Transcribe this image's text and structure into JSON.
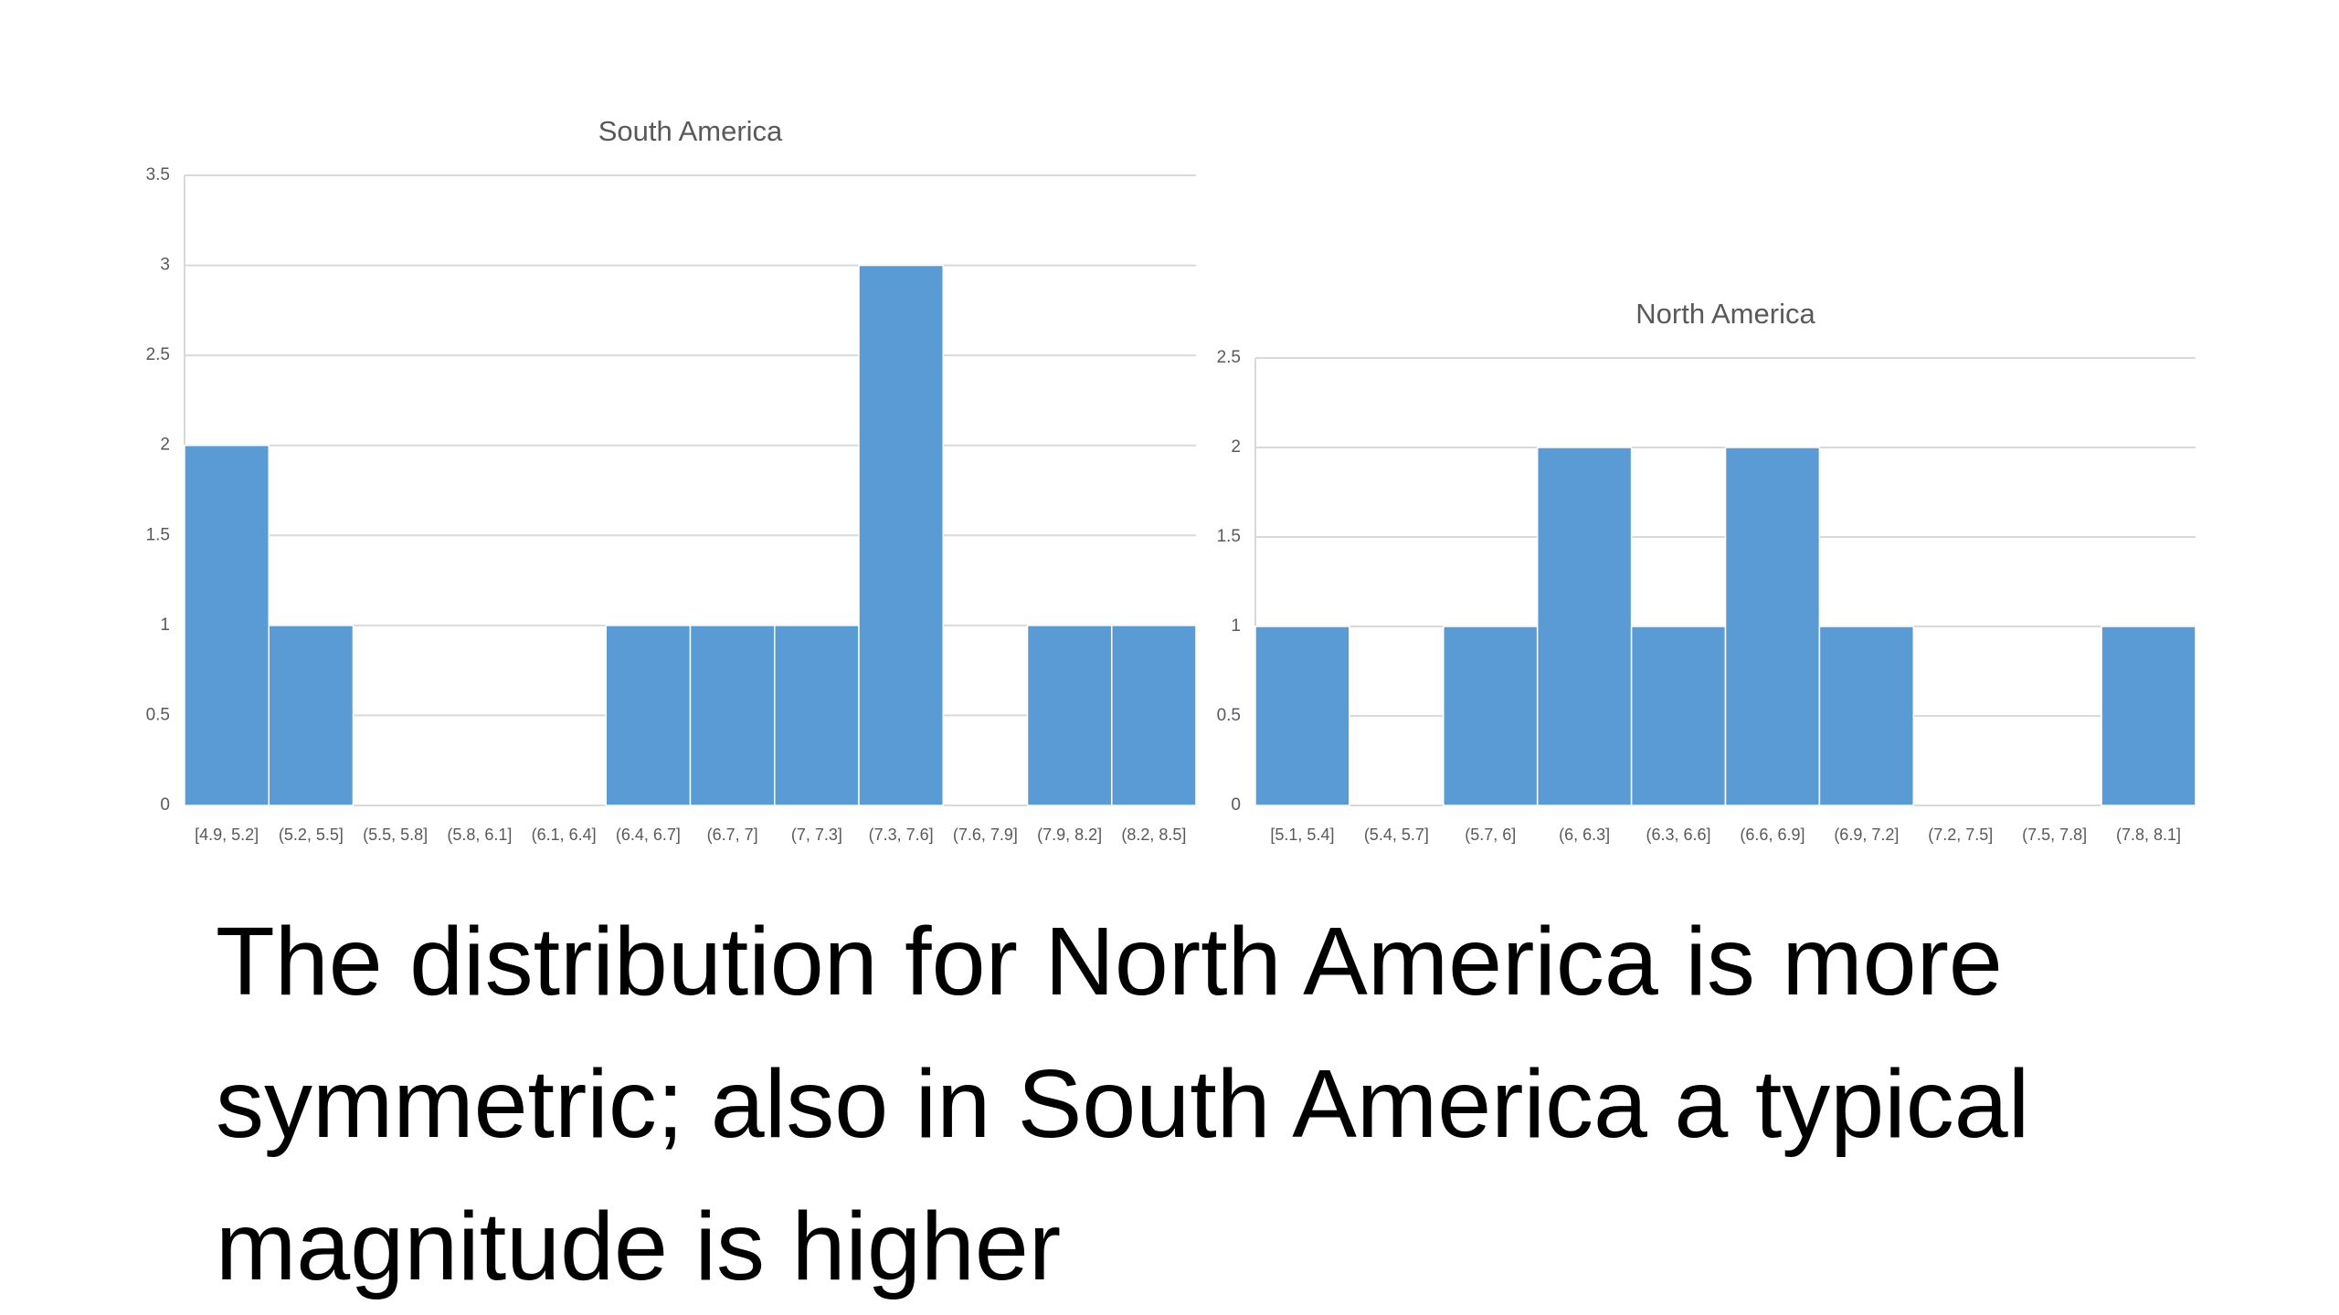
{
  "chart_data": [
    {
      "type": "bar",
      "title": "South America",
      "categories": [
        "[4.9, 5.2]",
        "(5.2, 5.5]",
        "(5.5, 5.8]",
        "(5.8, 6.1]",
        "(6.1, 6.4]",
        "(6.4, 6.7]",
        "(6.7, 7]",
        "(7, 7.3]",
        "(7.3, 7.6]",
        "(7.6, 7.9]",
        "(7.9, 8.2]",
        "(8.2, 8.5]"
      ],
      "values": [
        2,
        1,
        0,
        0,
        0,
        1,
        1,
        1,
        3,
        0,
        1,
        1
      ],
      "color": "#5b9bd5",
      "ylim": [
        0,
        3.5
      ],
      "yticks": [
        0,
        0.5,
        1,
        1.5,
        2,
        2.5,
        3,
        3.5
      ],
      "grid": true
    },
    {
      "type": "bar",
      "title": "North America",
      "categories": [
        "[5.1, 5.4]",
        "(5.4, 5.7]",
        "(5.7, 6]",
        "(6, 6.3]",
        "(6.3, 6.6]",
        "(6.6, 6.9]",
        "(6.9, 7.2]",
        "(7.2, 7.5]",
        "(7.5, 7.8]",
        "(7.8, 8.1]"
      ],
      "values": [
        1,
        0,
        1,
        2,
        1,
        2,
        1,
        0,
        0,
        1
      ],
      "color": "#5b9bd5",
      "ylim": [
        0,
        2.5
      ],
      "yticks": [
        0,
        0.5,
        1,
        1.5,
        2,
        2.5
      ],
      "grid": true
    }
  ],
  "body_text": "The distribution for North America is more symmetric; also in South America a typical magnitude is higher"
}
